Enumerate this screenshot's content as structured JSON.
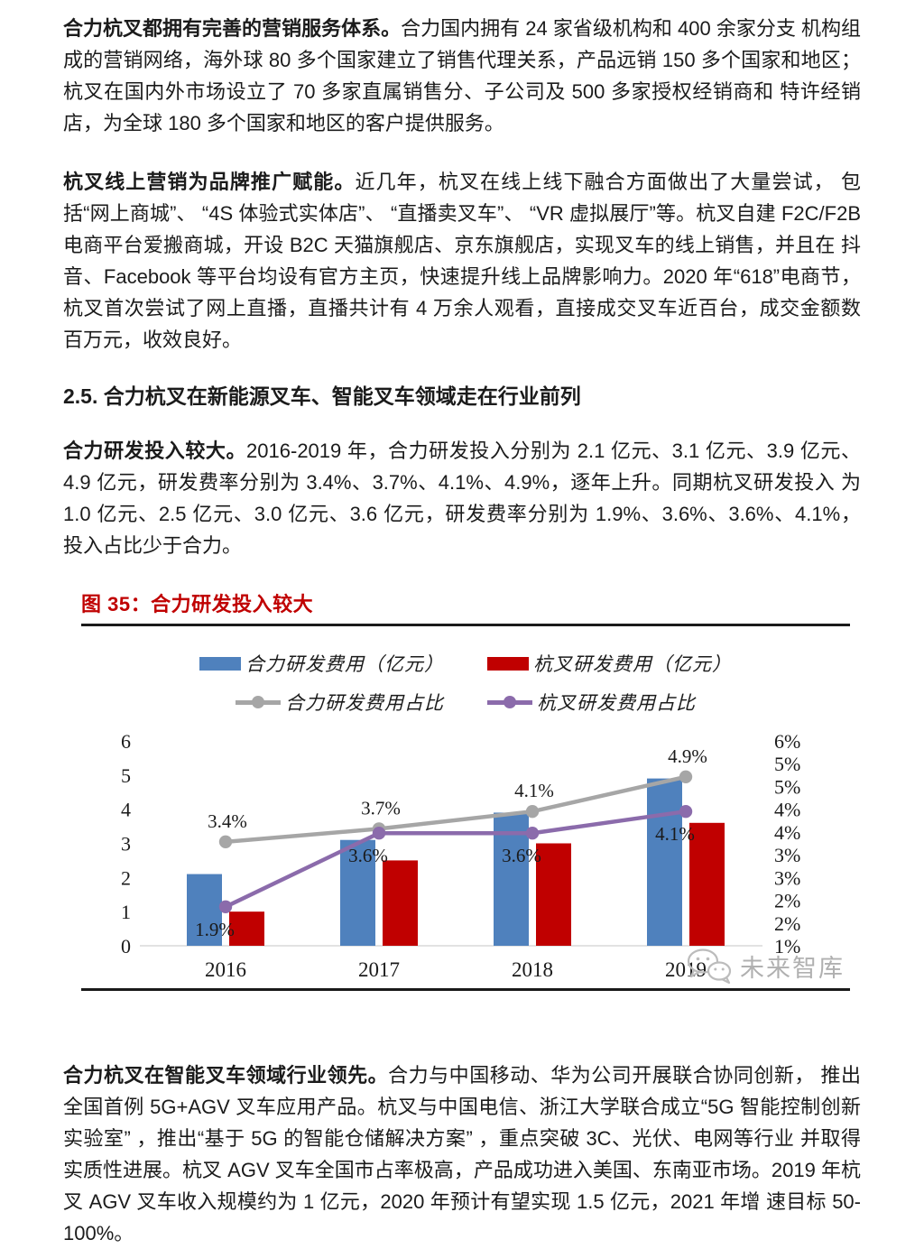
{
  "document": {
    "section_heading": "2.5. 合力杭叉在新能源叉车、智能叉车领域走在行业前列",
    "paragraphs": [
      {
        "bold": "合力杭叉都拥有完善的营销服务体系。",
        "text": "合力国内拥有 24 家省级机构和 400 余家分支 机构组成的营销网络，海外球 80 多个国家建立了销售代理关系，产品远销 150 多个国家和地区；杭叉在国内外市场设立了 70 多家直属销售分、子公司及 500 多家授权经销商和 特许经销店，为全球 180 多个国家和地区的客户提供服务。"
      },
      {
        "bold": "杭叉线上营销为品牌推广赋能。",
        "text": "近几年，杭叉在线上线下融合方面做出了大量尝试， 包括“网上商城”、 “4S 体验式实体店”、 “直播卖叉车”、 “VR 虚拟展厅”等。杭叉自建 F2C/F2B 电商平台爱搬商城，开设 B2C 天猫旗舰店、京东旗舰店，实现叉车的线上销售，并且在 抖音、Facebook 等平台均设有官方主页，快速提升线上品牌影响力。2020 年“618”电商节，杭叉首次尝试了网上直播，直播共计有 4 万余人观看，直接成交叉车近百台，成交金额数 百万元，收效良好。"
      },
      {
        "bold": "合力研发投入较大。",
        "text": "2016-2019 年，合力研发投入分别为 2.1 亿元、3.1 亿元、3.9 亿元、4.9 亿元，研发费率分别为 3.4%、3.7%、4.1%、4.9%，逐年上升。同期杭叉研发投入 为 1.0 亿元、2.5 亿元、3.0 亿元、3.6 亿元，研发费率分别为 1.9%、3.6%、3.6%、4.1%， 投入占比少于合力。"
      },
      {
        "bold": "合力杭叉在智能叉车领域行业领先。",
        "text": "合力与中国移动、华为公司开展联合协同创新， 推出全国首例 5G+AGV 叉车应用产品。杭叉与中国电信、浙江大学联合成立“5G 智能控制创新实验室” ，推出“基于 5G 的智能仓储解决方案” ，重点突破 3C、光伏、电网等行业 并取得实质性进展。杭叉 AGV 叉车全国市占率极高，产品成功进入美国、东南亚市场。2019 年杭叉 AGV 叉车收入规模约为 1 亿元，2020 年预计有望实现 1.5 亿元，2021 年增 速目标 50-100%。"
      }
    ]
  },
  "figure": {
    "caption": "图 35：合力研发投入较大",
    "caption_color": "#c00000",
    "watermark_text": "未来智库"
  },
  "chart_data": {
    "type": "combo-bar-line",
    "title": "合力研发投入较大",
    "categories": [
      "2016",
      "2017",
      "2018",
      "2019"
    ],
    "bar_series": [
      {
        "name": "合力研发费用（亿元）",
        "color": "#4f81bd",
        "axis": "left",
        "values": [
          2.1,
          3.1,
          3.9,
          4.9
        ]
      },
      {
        "name": "杭叉研发费用（亿元）",
        "color": "#c00000",
        "axis": "left",
        "values": [
          1.0,
          2.5,
          3.0,
          3.6
        ]
      }
    ],
    "line_series": [
      {
        "name": "合力研发费用占比",
        "color": "#a6a6a6",
        "axis": "right",
        "values": [
          3.4,
          3.7,
          4.1,
          4.9
        ],
        "labels": [
          "3.4%",
          "3.7%",
          "4.1%",
          "4.9%"
        ],
        "label_position": "above"
      },
      {
        "name": "杭叉研发费用占比",
        "color": "#8b6bab",
        "axis": "right",
        "values": [
          1.9,
          3.6,
          3.6,
          4.1
        ],
        "labels": [
          "1.9%",
          "3.6%",
          "3.6%",
          "4.1%"
        ],
        "label_position": "below"
      }
    ],
    "left_axis": {
      "min": 0,
      "max": 6,
      "ticks": [
        "6",
        "5",
        "4",
        "3",
        "2",
        "1",
        "0"
      ]
    },
    "right_axis": {
      "min": 1,
      "max": 6,
      "ticks": [
        "6%",
        "5%",
        "5%",
        "4%",
        "4%",
        "3%",
        "3%",
        "2%",
        "2%",
        "1%"
      ]
    },
    "legend_position": "top",
    "grid": false
  }
}
